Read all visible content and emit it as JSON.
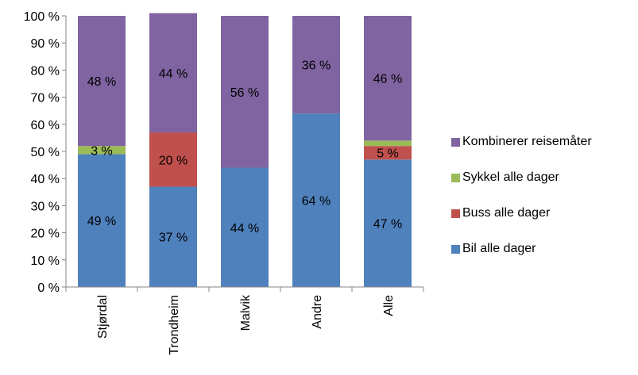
{
  "chart_data": {
    "type": "bar",
    "stacked": true,
    "percent_stacked": true,
    "categories": [
      "Stjørdal",
      "Trondheim",
      "Malvik",
      "Andre",
      "Alle"
    ],
    "series": [
      {
        "name": "Bil alle dager",
        "color": "#4F81BD",
        "values": [
          49,
          37,
          44,
          64,
          47
        ],
        "labels": [
          "49 %",
          "37 %",
          "44 %",
          "64 %",
          "47 %"
        ]
      },
      {
        "name": "Buss alle dager",
        "color": "#C0504D",
        "values": [
          0,
          20,
          0,
          0,
          5
        ],
        "labels": [
          "",
          "20 %",
          "",
          "",
          "5 %"
        ]
      },
      {
        "name": "Sykkel alle dager",
        "color": "#9BBB59",
        "values": [
          3,
          0,
          0,
          0,
          2
        ],
        "labels": [
          "3 %",
          "",
          "",
          "",
          ""
        ]
      },
      {
        "name": "Kombinerer reisemåter",
        "color": "#8064A2",
        "values": [
          48,
          44,
          56,
          36,
          46
        ],
        "labels": [
          "48 %",
          "44 %",
          "56 %",
          "36 %",
          "46 %"
        ]
      }
    ],
    "ylim": [
      0,
      100
    ],
    "yticks": [
      0,
      10,
      20,
      30,
      40,
      50,
      60,
      70,
      80,
      90,
      100
    ],
    "ytick_labels": [
      "0 %",
      "10 %",
      "20 %",
      "30 %",
      "40 %",
      "50 %",
      "60 %",
      "70 %",
      "80 %",
      "90 %",
      "100 %"
    ],
    "legend": {
      "placement": "right",
      "order": [
        "Kombinerer reisemåter",
        "Sykkel alle dager",
        "Buss alle dager",
        "Bil alle dager"
      ]
    },
    "grid": false,
    "title": "",
    "xlabel": "",
    "ylabel": ""
  }
}
